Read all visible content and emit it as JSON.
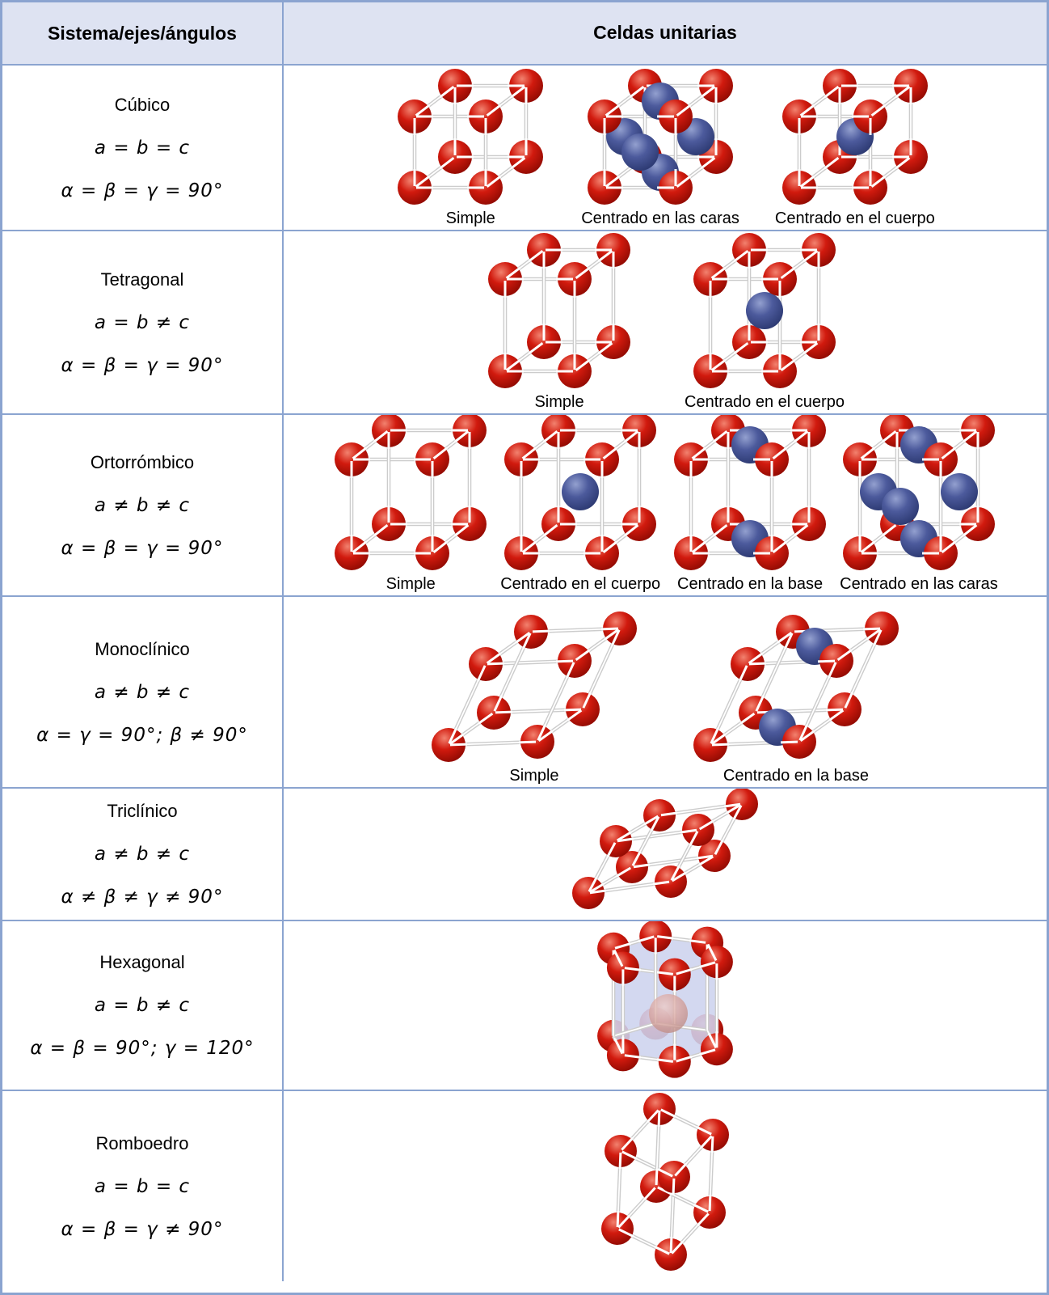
{
  "table": {
    "header": {
      "col1": "Sistema/ejes/ángulos",
      "col2": "Celdas unitarias"
    },
    "rows": [
      {
        "system": "Cúbico",
        "axes": "a = b = c",
        "angles": "α = β = γ = 90°",
        "cells": [
          {
            "type": "cubic",
            "centering": "simple",
            "label": "Simple"
          },
          {
            "type": "cubic",
            "centering": "faces",
            "label": "Centrado en las caras"
          },
          {
            "type": "cubic",
            "centering": "body",
            "label": "Centrado en el cuerpo"
          }
        ]
      },
      {
        "system": "Tetragonal",
        "axes": "a = b ≠ c",
        "angles": "α = β = γ = 90°",
        "cells": [
          {
            "type": "tetragonal",
            "centering": "simple",
            "label": "Simple"
          },
          {
            "type": "tetragonal",
            "centering": "body",
            "label": "Centrado en el cuerpo"
          }
        ]
      },
      {
        "system": "Ortorrómbico",
        "axes": "a ≠ b ≠ c",
        "angles": "α = β = γ = 90°",
        "cells": [
          {
            "type": "orthorhombic",
            "centering": "simple",
            "label": "Simple"
          },
          {
            "type": "orthorhombic",
            "centering": "body",
            "label": "Centrado en el cuerpo"
          },
          {
            "type": "orthorhombic",
            "centering": "base",
            "label": "Centrado en la base"
          },
          {
            "type": "orthorhombic",
            "centering": "faces",
            "label": "Centrado en las caras"
          }
        ]
      },
      {
        "system": "Monoclínico",
        "axes": "a ≠ b ≠ c",
        "angles": "α = γ = 90°; β ≠ 90°",
        "cells": [
          {
            "type": "monoclinic",
            "centering": "simple",
            "label": "Simple"
          },
          {
            "type": "monoclinic",
            "centering": "base",
            "label": "Centrado en la base"
          }
        ]
      },
      {
        "system": "Triclínico",
        "axes": "a ≠ b ≠ c",
        "angles": "α ≠ β ≠ γ ≠ 90°",
        "cells": [
          {
            "type": "triclinic",
            "centering": "simple",
            "label": ""
          }
        ]
      },
      {
        "system": "Hexagonal",
        "axes": "a = b ≠ c",
        "angles": "α = β = 90°; γ = 120°",
        "cells": [
          {
            "type": "hexagonal",
            "centering": "simple",
            "label": ""
          }
        ]
      },
      {
        "system": "Romboedro",
        "axes": "a = b = c",
        "angles": "α = β = γ ≠ 90°",
        "cells": [
          {
            "type": "rhombohedral",
            "centering": "simple",
            "label": ""
          }
        ]
      }
    ],
    "colors": {
      "border": "#8ba4d0",
      "header_bg": "#dee3f2",
      "text": "#000000",
      "atom_red": "#d11a0e",
      "atom_red_highlight": "#f2826f",
      "atom_red_dark": "#8f0a02",
      "atom_blue": "#4c5a9c",
      "atom_blue_highlight": "#93a0cf",
      "atom_blue_dark": "#2b3870",
      "atom_faded": "#d8a5a0",
      "atom_faded_highlight": "#ecccc8",
      "atom_faded_dark": "#bd8b85",
      "rod": "#cccccc",
      "hex_face": "#cdd3ee",
      "hex_edge": "#b0badf"
    }
  }
}
